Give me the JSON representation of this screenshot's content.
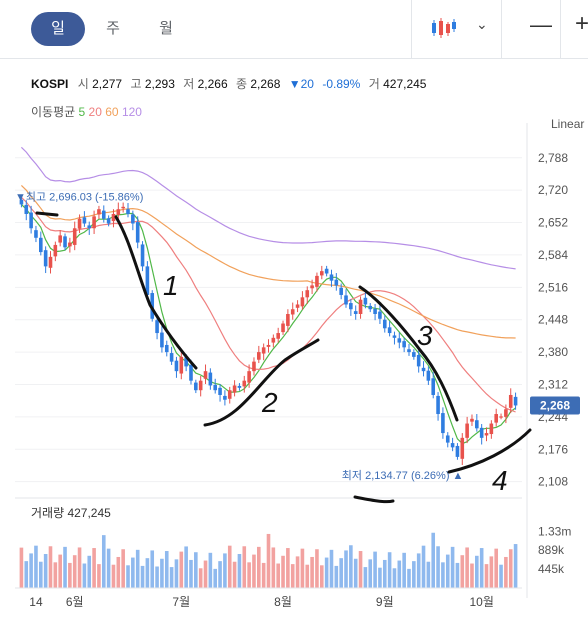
{
  "periods": {
    "day": "일",
    "week": "주",
    "month": "월"
  },
  "zoom": {
    "minus": "—",
    "plus": "+"
  },
  "quote": {
    "symbol": "KOSPI",
    "open_label": "시",
    "open": "2,277",
    "high_label": "고",
    "high": "2,293",
    "low_label": "저",
    "low": "2,266",
    "close_label": "종",
    "close": "2,268",
    "change": "▼20",
    "change_pct": "-0.89%",
    "volume_label": "거",
    "volume": "427,245"
  },
  "ma": {
    "label": "이동평균",
    "p5": "5",
    "p20": "20",
    "p60": "60",
    "p120": "120"
  },
  "scale_mode": "Linear",
  "colors": {
    "up": "#e8524c",
    "down": "#2f7de0",
    "ma5": "#50b848",
    "ma20": "#ef7f7f",
    "ma60": "#f1a15b",
    "ma120": "#b68ee6",
    "badge": "#3d6db5"
  },
  "chart_data": {
    "type": "candlestick",
    "price_axis": {
      "ylim": [
        2080,
        2840
      ],
      "ticks": [
        2788,
        2720,
        2652,
        2584,
        2516,
        2448,
        2380,
        2312,
        2244,
        2176,
        2108
      ]
    },
    "x_labels": [
      "14",
      "6월",
      "7월",
      "8월",
      "9월",
      "10월"
    ],
    "current_price": "2,268",
    "max_label": {
      "prefix": "최고",
      "text": "2,696.03 (-15.86%)"
    },
    "min_label": {
      "prefix": "최저",
      "text": "2,134.77 (6.26%)"
    },
    "closes": [
      2690,
      2670,
      2640,
      2620,
      2590,
      2560,
      2580,
      2605,
      2625,
      2600,
      2610,
      2640,
      2660,
      2650,
      2640,
      2665,
      2680,
      2660,
      2650,
      2670,
      2680,
      2685,
      2670,
      2650,
      2610,
      2560,
      2500,
      2450,
      2420,
      2390,
      2380,
      2360,
      2340,
      2370,
      2350,
      2320,
      2300,
      2320,
      2340,
      2310,
      2300,
      2290,
      2280,
      2300,
      2310,
      2305,
      2320,
      2340,
      2360,
      2380,
      2390,
      2395,
      2410,
      2420,
      2440,
      2460,
      2470,
      2480,
      2495,
      2510,
      2520,
      2540,
      2550,
      2545,
      2530,
      2520,
      2500,
      2480,
      2470,
      2460,
      2490,
      2480,
      2470,
      2460,
      2450,
      2430,
      2420,
      2410,
      2400,
      2390,
      2380,
      2370,
      2350,
      2340,
      2320,
      2290,
      2250,
      2210,
      2190,
      2180,
      2160,
      2200,
      2230,
      2240,
      2220,
      2200,
      2210,
      2230,
      2250,
      2245,
      2260,
      2290,
      2268
    ],
    "volume": {
      "label": "거래량",
      "value": "427,245",
      "ticks": [
        "1.33m",
        "889k",
        "445k"
      ],
      "ylim": [
        0,
        1600
      ]
    },
    "annotations": [
      "1",
      "2",
      "3",
      "4"
    ]
  }
}
